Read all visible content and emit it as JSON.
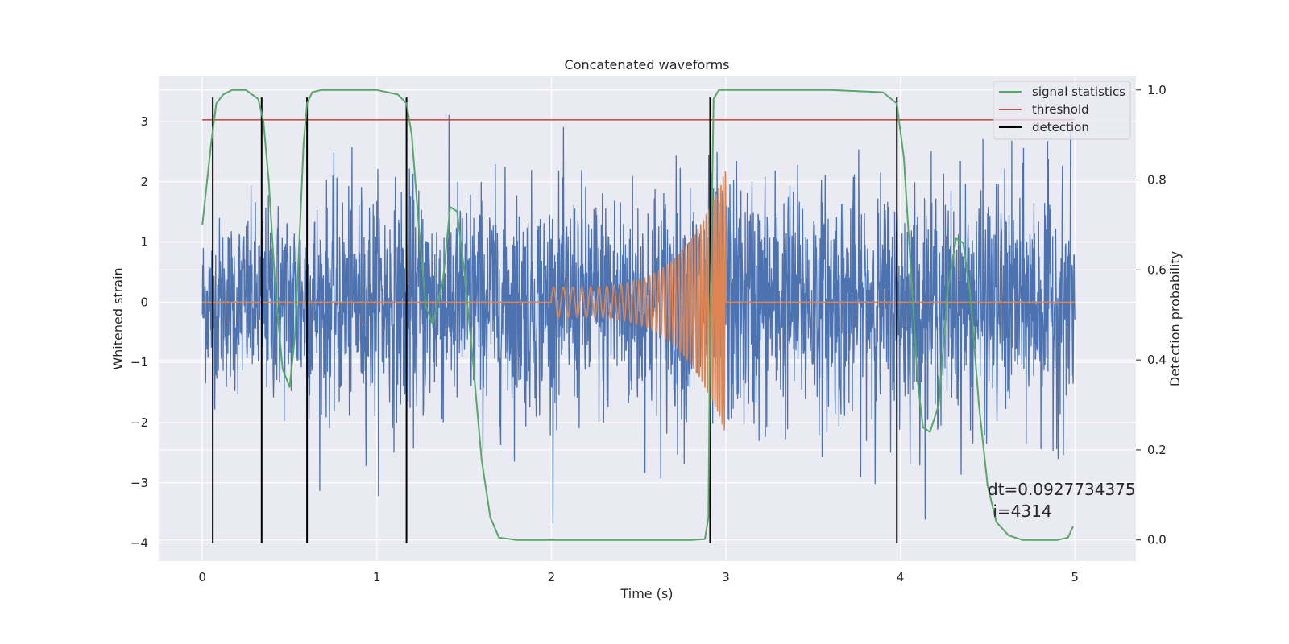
{
  "chart_data": {
    "type": "line",
    "title": "Concatenated waveforms",
    "xlabel": "Time (s)",
    "ylabel_left": "Whitened strain",
    "ylabel_right": "Detection probability",
    "xlim": [
      -0.25,
      5.35
    ],
    "ylim_left": [
      -4.3,
      3.75
    ],
    "ylim_right": [
      -0.047,
      1.03
    ],
    "x_ticks": [
      0,
      1,
      2,
      3,
      4,
      5
    ],
    "y_left_ticks": [
      -4,
      -3,
      -2,
      -1,
      0,
      1,
      2,
      3
    ],
    "y_right_ticks": [
      0.0,
      0.2,
      0.4,
      0.6,
      0.8,
      1.0
    ],
    "x_tick_labels": [
      "0",
      "1",
      "2",
      "3",
      "4",
      "5"
    ],
    "y_left_tick_labels": [
      "−4",
      "−3",
      "−2",
      "−1",
      "0",
      "1",
      "2",
      "3"
    ],
    "y_right_tick_labels": [
      "0.0",
      "0.2",
      "0.4",
      "0.6",
      "0.8",
      "1.0"
    ],
    "grid": true,
    "legend_position": "top-right",
    "legend": [
      {
        "label": "signal statistics",
        "color": "#55a868"
      },
      {
        "label": "threshold",
        "color": "#c44e52"
      },
      {
        "label": "detection",
        "color": "#000000"
      }
    ],
    "series": [
      {
        "kind": "noise",
        "color": "#4c72b0",
        "x_range": [
          0,
          5
        ],
        "envelope": [
          [
            0.0,
            1.7
          ],
          [
            0.5,
            2.3
          ],
          [
            1.0,
            2.5
          ],
          [
            1.5,
            2.5
          ],
          [
            2.0,
            2.4
          ],
          [
            2.5,
            2.6
          ],
          [
            3.0,
            2.8
          ],
          [
            3.5,
            2.6
          ],
          [
            4.0,
            2.5
          ],
          [
            4.5,
            2.6
          ],
          [
            5.0,
            2.6
          ]
        ]
      },
      {
        "kind": "chirp",
        "color": "#dd8452",
        "x_range": [
          0,
          5
        ],
        "chirp_start": 2.0,
        "chirp_end": 3.0,
        "start_amplitude": 0.25,
        "peak_amplitude": 2.2,
        "start_frequency_hz": 18,
        "end_frequency_hz": 80
      },
      {
        "name": "signal statistics",
        "axis": "right",
        "color": "#55a868",
        "x": [
          0.0,
          0.05,
          0.08,
          0.12,
          0.17,
          0.25,
          0.32,
          0.35,
          0.38,
          0.42,
          0.46,
          0.5,
          0.53,
          0.56,
          0.58,
          0.6,
          0.63,
          0.68,
          0.8,
          1.0,
          1.12,
          1.17,
          1.2,
          1.24,
          1.28,
          1.32,
          1.38,
          1.42,
          1.46,
          1.5,
          1.55,
          1.6,
          1.65,
          1.7,
          1.8,
          2.2,
          2.8,
          2.88,
          2.9,
          2.91,
          2.93,
          2.96,
          3.1,
          3.6,
          3.9,
          3.98,
          4.02,
          4.06,
          4.1,
          4.13,
          4.17,
          4.22,
          4.27,
          4.32,
          4.36,
          4.4,
          4.45,
          4.5,
          4.55,
          4.62,
          4.7,
          4.8,
          4.9,
          4.96,
          4.99
        ],
        "values": [
          0.7,
          0.88,
          0.97,
          0.99,
          1.0,
          1.0,
          0.98,
          0.93,
          0.8,
          0.55,
          0.38,
          0.34,
          0.45,
          0.7,
          0.88,
          0.97,
          0.995,
          1.0,
          1.0,
          1.0,
          0.99,
          0.97,
          0.9,
          0.7,
          0.52,
          0.48,
          0.58,
          0.74,
          0.73,
          0.6,
          0.4,
          0.18,
          0.05,
          0.005,
          0.0,
          0.0,
          0.0,
          0.002,
          0.05,
          0.5,
          0.98,
          1.0,
          1.0,
          1.0,
          0.995,
          0.97,
          0.85,
          0.6,
          0.35,
          0.25,
          0.24,
          0.3,
          0.55,
          0.67,
          0.66,
          0.55,
          0.3,
          0.12,
          0.04,
          0.01,
          0.0,
          0.0,
          0.0,
          0.005,
          0.03
        ]
      },
      {
        "name": "threshold",
        "axis": "left",
        "color": "#c44e52",
        "x": [
          0,
          5
        ],
        "values": [
          3.03,
          3.03
        ]
      }
    ],
    "detections": {
      "color": "#000000",
      "x": [
        0.06,
        0.34,
        0.6,
        1.17,
        2.91,
        3.98
      ],
      "y_range": [
        -4.0,
        3.4
      ]
    },
    "annotation": "dt=0.0927734375\n i=4314"
  }
}
